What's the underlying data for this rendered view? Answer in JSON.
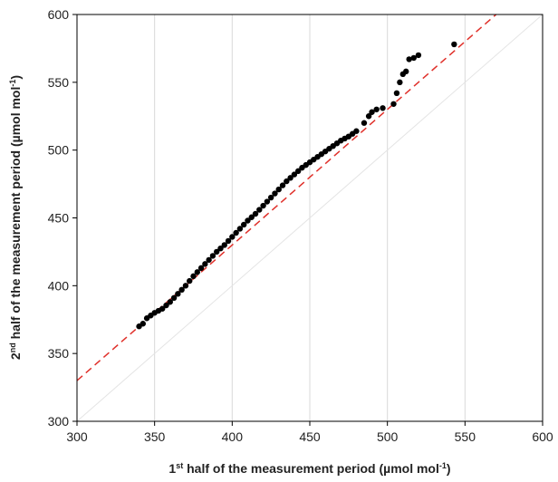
{
  "chart_data": {
    "type": "scatter",
    "x_label": [
      "1",
      "st",
      " half of the measurement period (µmol mol",
      "-1",
      ")"
    ],
    "y_label": [
      "2",
      "nd",
      " half of the measurement period (µmol mol",
      "-1",
      ")"
    ],
    "xlim": [
      300,
      600
    ],
    "ylim": [
      300,
      600
    ],
    "xticks": [
      300,
      350,
      400,
      450,
      500,
      550,
      600
    ],
    "yticks": [
      300,
      350,
      400,
      450,
      500,
      550,
      600
    ],
    "grid": "x",
    "series": [
      {
        "type": "scatter",
        "color": "#000000",
        "x": [
          340,
          342.5,
          345,
          347.5,
          350,
          352.5,
          355,
          357.5,
          360,
          362.5,
          365,
          367.5,
          370,
          372.5,
          375,
          377.5,
          380,
          382.5,
          385,
          387.5,
          390,
          392.5,
          395,
          397.5,
          400,
          402.5,
          405,
          407.5,
          410,
          412.5,
          415,
          417.5,
          420,
          422.5,
          425,
          427.5,
          430,
          432.5,
          435,
          437.5,
          440,
          442.5,
          445,
          447.5,
          450,
          452.5,
          455,
          457.5,
          460,
          462.5,
          465,
          467.5,
          470,
          472.5,
          475,
          477.5,
          480,
          485,
          488,
          490,
          493,
          497,
          504,
          506,
          508,
          510,
          512,
          514,
          517,
          520,
          543
        ],
        "values": [
          370,
          372,
          376,
          378,
          380,
          381.5,
          383,
          385.5,
          388,
          391,
          394,
          397,
          400,
          403.5,
          407,
          410,
          413,
          416,
          419,
          422,
          425,
          427.5,
          430,
          433,
          436,
          439,
          442,
          445,
          448,
          450.5,
          453,
          456,
          459,
          462,
          465,
          468,
          471,
          474,
          477,
          479.5,
          482,
          484.5,
          487,
          489,
          491,
          493,
          495,
          497,
          499,
          501,
          503,
          505,
          507,
          508.5,
          510,
          512,
          514,
          520,
          525,
          528,
          530,
          531,
          534,
          542,
          550,
          556,
          558,
          567,
          568,
          570,
          578
        ]
      },
      {
        "type": "line",
        "color": "#e0302a",
        "dash": true,
        "x": [
          300,
          570
        ],
        "values": [
          330,
          600
        ]
      },
      {
        "type": "line",
        "color": "#e4e4e4",
        "dash": false,
        "x": [
          300,
          600
        ],
        "values": [
          300,
          600
        ]
      }
    ]
  }
}
